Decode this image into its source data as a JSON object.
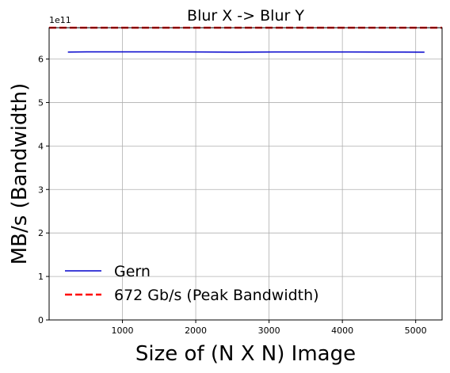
{
  "chart_data": {
    "type": "line",
    "title": "Blur X -> Blur Y",
    "xlabel": "Size of (N X N) Image",
    "ylabel": "MB/s (Bandwidth)",
    "y_offset_label": "1e11",
    "xlim": [
      0,
      5360
    ],
    "ylim": [
      0,
      6.72
    ],
    "xticks": [
      1000,
      2000,
      3000,
      4000,
      5000
    ],
    "xtick_labels": [
      "1000",
      "2000",
      "3000",
      "4000",
      "5000"
    ],
    "yticks": [
      0,
      1,
      2,
      3,
      4,
      5,
      6
    ],
    "ytick_labels": [
      "0",
      "1",
      "2",
      "3",
      "4",
      "5",
      "6"
    ],
    "grid": true,
    "legend_position": "lower-left",
    "series": [
      {
        "name": "Gern",
        "color": "#0000cc",
        "style": "solid",
        "x": [
          256,
          512,
          1024,
          1536,
          2048,
          2560,
          3072,
          3584,
          4096,
          4608,
          5120
        ],
        "y": [
          6.16,
          6.165,
          6.165,
          6.165,
          6.163,
          6.158,
          6.163,
          6.163,
          6.163,
          6.16,
          6.158
        ]
      },
      {
        "name": "672 Gb/s (Peak Bandwidth)",
        "color": "#ff0000",
        "style": "dashed",
        "hline": 6.72
      }
    ]
  }
}
